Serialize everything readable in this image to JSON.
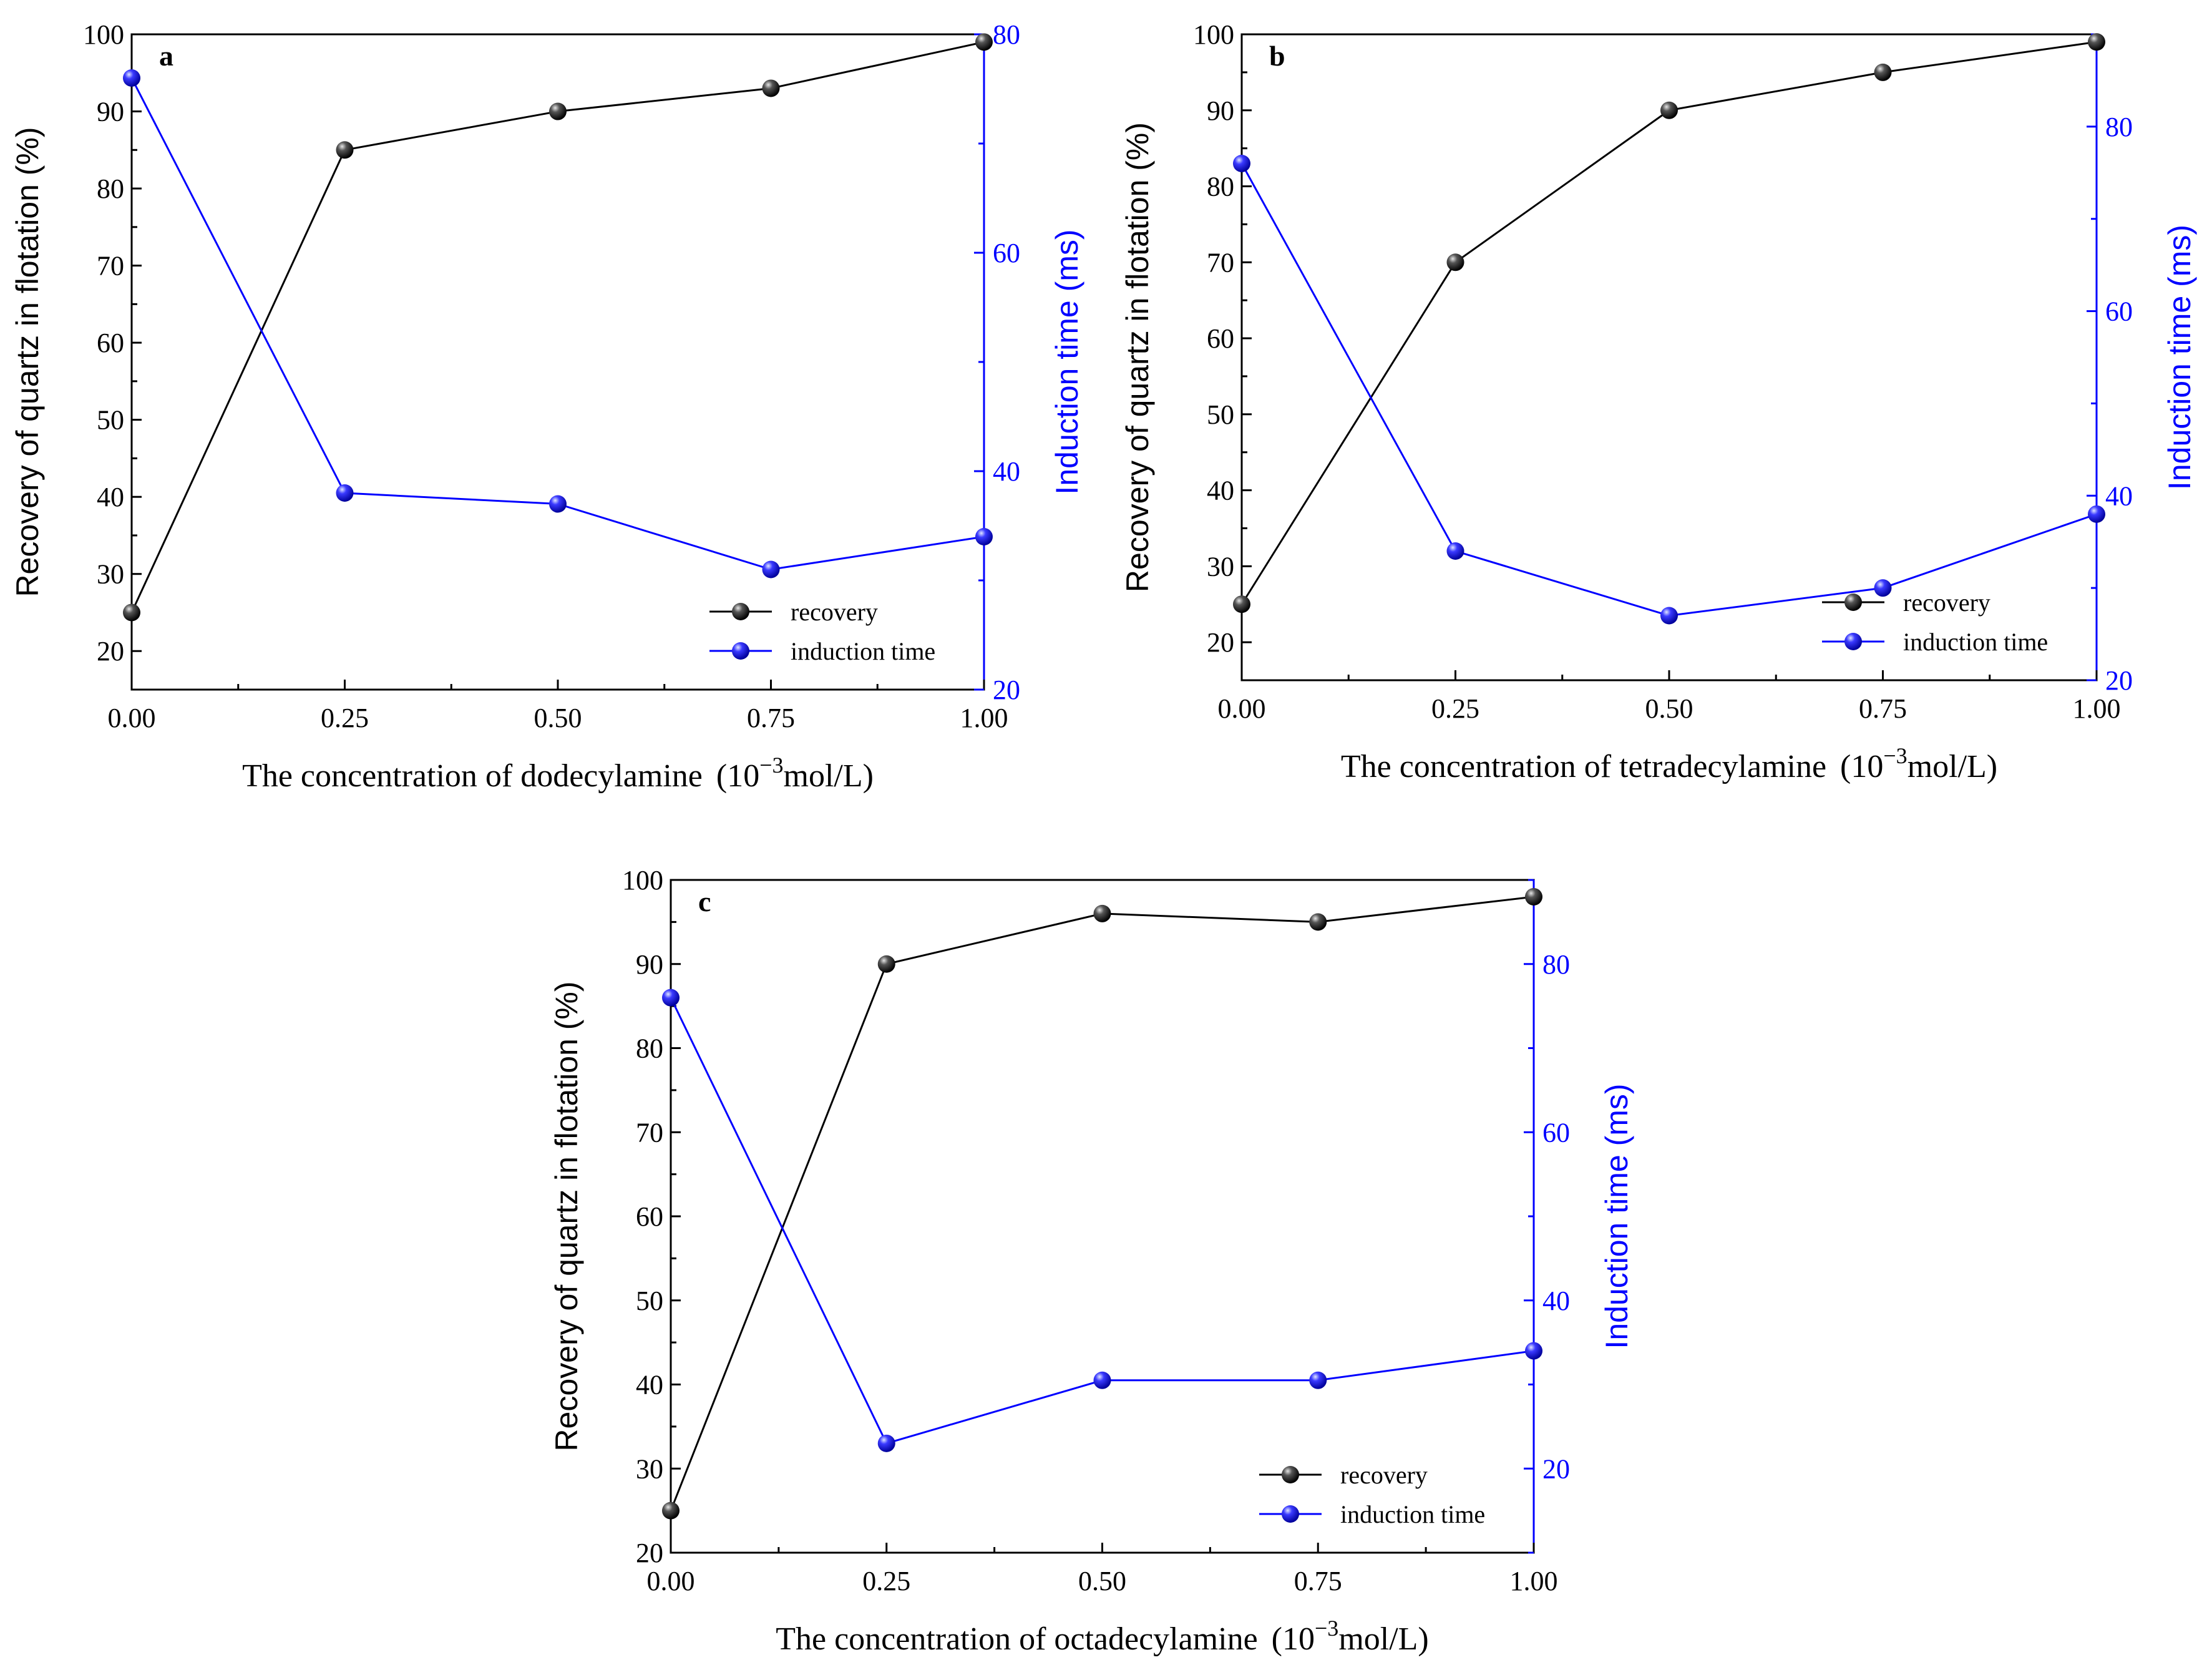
{
  "figure": {
    "panels": [
      "a",
      "b",
      "c"
    ]
  },
  "chart_data": [
    {
      "type": "line",
      "panel_label": "a",
      "title": "",
      "xlabel_main": "The concentration of dodecylamine",
      "xlabel_unit_base": "(10",
      "xlabel_unit_exp": "−3",
      "xlabel_unit_rest": "mol/L)",
      "ylabel": "Recovery of quartz in flotation  (%)",
      "y2label": "Induction time  (ms)",
      "x": [
        0.0,
        0.25,
        0.5,
        0.75,
        1.0
      ],
      "xlim": [
        0,
        1
      ],
      "ylim": [
        15,
        100
      ],
      "y2lim": [
        20,
        80
      ],
      "xticks": [
        "0.00",
        "0.25",
        "0.50",
        "0.75",
        "1.00"
      ],
      "yticks": [
        "20",
        "30",
        "40",
        "50",
        "60",
        "70",
        "80",
        "90",
        "100"
      ],
      "y2ticks": [
        "20",
        "40",
        "60",
        "80"
      ],
      "series": [
        {
          "name": "recovery",
          "axis": "left",
          "color": "#000000",
          "values": [
            25,
            85,
            90,
            93,
            99
          ]
        },
        {
          "name": "induction time",
          "axis": "right",
          "color": "#0000ff",
          "values": [
            76,
            38,
            37,
            31,
            34
          ]
        }
      ],
      "legend": [
        "recovery",
        "induction time"
      ],
      "legend_position": "bottom-right"
    },
    {
      "type": "line",
      "panel_label": "b",
      "title": "",
      "xlabel_main": "The concentration of  tetradecylamine",
      "xlabel_unit_base": "(10",
      "xlabel_unit_exp": "−3",
      "xlabel_unit_rest": "mol/L)",
      "ylabel": "Recovery of quartz in flotation  (%)",
      "y2label": "Induction time  (ms)",
      "x": [
        0.0,
        0.25,
        0.5,
        0.75,
        1.0
      ],
      "xlim": [
        0,
        1
      ],
      "ylim": [
        15,
        100
      ],
      "y2lim": [
        20,
        90
      ],
      "xticks": [
        "0.00",
        "0.25",
        "0.50",
        "0.75",
        "1.00"
      ],
      "yticks": [
        "20",
        "30",
        "40",
        "50",
        "60",
        "70",
        "80",
        "90",
        "100"
      ],
      "y2ticks": [
        "20",
        "40",
        "60",
        "80"
      ],
      "series": [
        {
          "name": "recovery",
          "axis": "left",
          "color": "#000000",
          "values": [
            25,
            70,
            90,
            95,
            99
          ]
        },
        {
          "name": "induction time",
          "axis": "right",
          "color": "#0000ff",
          "values": [
            76,
            34,
            27,
            30,
            38
          ]
        }
      ],
      "legend": [
        "recovery",
        "induction time"
      ],
      "legend_position": "bottom-right"
    },
    {
      "type": "line",
      "panel_label": "c",
      "title": "",
      "xlabel_main": "The concentration of octadecylamine",
      "xlabel_unit_base": "(10",
      "xlabel_unit_exp": "−3",
      "xlabel_unit_rest": "mol/L)",
      "ylabel": "Recovery  of quartz in flotation  (%)",
      "y2label": "Induction time  (ms)",
      "x": [
        0.0,
        0.25,
        0.5,
        0.75,
        1.0
      ],
      "xlim": [
        0,
        1
      ],
      "ylim": [
        20,
        100
      ],
      "y2lim": [
        10,
        90
      ],
      "xticks": [
        "0.00",
        "0.25",
        "0.50",
        "0.75",
        "1.00"
      ],
      "yticks": [
        "20",
        "30",
        "40",
        "50",
        "60",
        "70",
        "80",
        "90",
        "100"
      ],
      "y2ticks": [
        "20",
        "40",
        "60",
        "80"
      ],
      "series": [
        {
          "name": "recovery",
          "axis": "left",
          "color": "#000000",
          "values": [
            25,
            90,
            96,
            95,
            98
          ]
        },
        {
          "name": "induction time",
          "axis": "right",
          "color": "#0000ff",
          "values": [
            76,
            23,
            30.5,
            30.5,
            34
          ]
        }
      ],
      "legend": [
        "recovery",
        "induction time"
      ],
      "legend_position": "bottom-right"
    }
  ]
}
